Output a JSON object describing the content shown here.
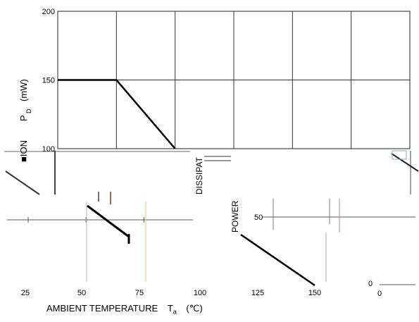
{
  "chart_data": [
    {
      "type": "line",
      "panel": "top",
      "ylabel_parts": [
        "■ION",
        "P",
        "D",
        "(mW)"
      ],
      "y_ticks": [
        100,
        150,
        200
      ],
      "ylim": [
        100,
        200
      ],
      "xlim": [
        25,
        175
      ],
      "grid": true,
      "series": [
        {
          "x": [
            25,
            50,
            75
          ],
          "y": [
            150,
            150,
            100
          ]
        }
      ]
    },
    {
      "type": "line",
      "panel": "bottom",
      "x_ticks": [
        25,
        50,
        75,
        100,
        125,
        150
      ],
      "x_tick_labels": [
        "25",
        "50",
        "75",
        "100",
        "125",
        "150"
      ],
      "xlabel_parts": [
        "AMBIENT TEMPERATURE",
        "T",
        "a",
        "(℃)"
      ],
      "ylabel_fragments": [
        "DISSIPAT",
        "POWER"
      ],
      "y_tick_labels": [
        "50",
        "0",
        "0"
      ],
      "series": [
        {
          "x": [
            25,
            50
          ],
          "y": [
            64,
            0
          ]
        },
        {
          "x": [
            125,
            150
          ],
          "y": [
            64,
            0
          ]
        }
      ]
    }
  ]
}
